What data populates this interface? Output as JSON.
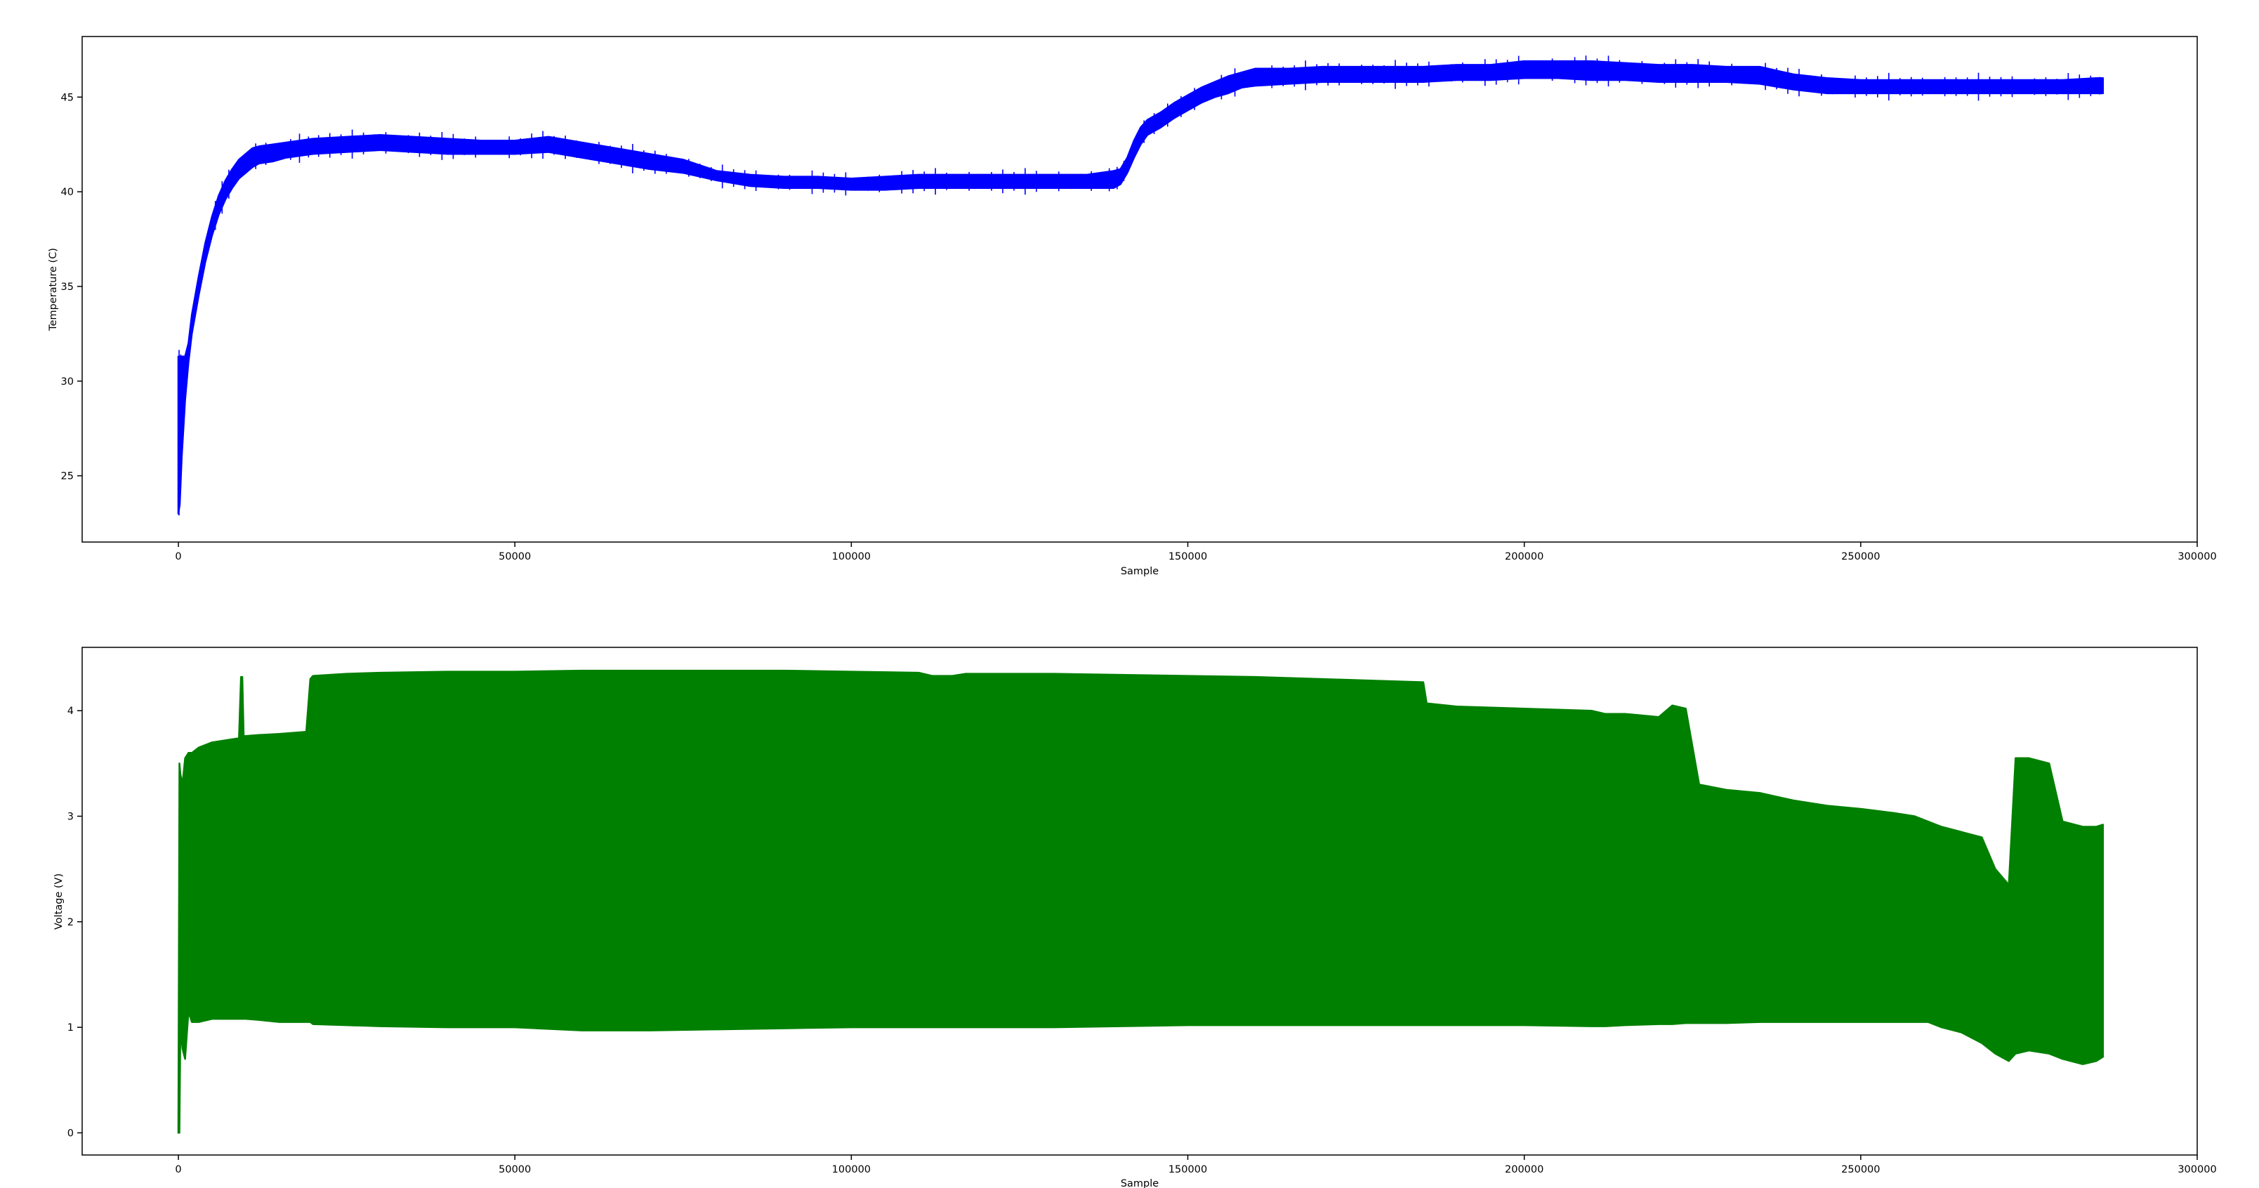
{
  "chart_data": [
    {
      "type": "line",
      "title": "",
      "xlabel": "Sample",
      "ylabel": "Temperature (C)",
      "xlim": [
        -14300,
        300000
      ],
      "ylim": [
        21.5,
        48.2
      ],
      "x_ticks": [
        0,
        50000,
        100000,
        150000,
        200000,
        250000,
        300000
      ],
      "x_tick_labels": [
        "0",
        "50000",
        "100000",
        "150000",
        "200000",
        "250000",
        "300000"
      ],
      "y_ticks": [
        25,
        30,
        35,
        40,
        45
      ],
      "y_tick_labels": [
        "25",
        "30",
        "35",
        "40",
        "45"
      ],
      "grid": false,
      "series": [
        {
          "color": "#0000ff",
          "style": "noisy-band",
          "x": [
            0,
            200,
            500,
            1000,
            1500,
            2000,
            3000,
            4000,
            5000,
            6000,
            7000,
            8000,
            9000,
            10000,
            11000,
            12000,
            14000,
            16000,
            20000,
            25000,
            30000,
            35000,
            40000,
            45000,
            50000,
            55000,
            60000,
            65000,
            70000,
            75000,
            80000,
            85000,
            90000,
            95000,
            100000,
            105000,
            110000,
            115000,
            120000,
            125000,
            130000,
            135000,
            139000,
            140000,
            141000,
            142000,
            143000,
            144000,
            146000,
            148000,
            150000,
            152000,
            154000,
            156000,
            158000,
            160000,
            165000,
            170000,
            175000,
            180000,
            185000,
            190000,
            195000,
            200000,
            205000,
            210000,
            215000,
            220000,
            225000,
            230000,
            235000,
            240000,
            245000,
            250000,
            255000,
            260000,
            265000,
            270000,
            275000,
            280000,
            285000,
            286000
          ],
          "y_low": [
            23.0,
            23.5,
            26.0,
            29.0,
            31.0,
            32.5,
            34.5,
            36.3,
            37.7,
            38.8,
            39.6,
            40.2,
            40.7,
            41.0,
            41.3,
            41.5,
            41.6,
            41.8,
            42.0,
            42.1,
            42.2,
            42.1,
            42.0,
            42.0,
            42.0,
            42.1,
            41.8,
            41.5,
            41.2,
            41.0,
            40.6,
            40.3,
            40.2,
            40.2,
            40.1,
            40.1,
            40.2,
            40.2,
            40.2,
            40.2,
            40.2,
            40.2,
            40.2,
            40.4,
            41.0,
            41.8,
            42.5,
            43.0,
            43.4,
            43.9,
            44.3,
            44.7,
            45.0,
            45.2,
            45.5,
            45.6,
            45.7,
            45.8,
            45.8,
            45.8,
            45.8,
            45.9,
            45.9,
            46.0,
            46.0,
            45.9,
            45.9,
            45.8,
            45.8,
            45.8,
            45.7,
            45.4,
            45.2,
            45.2,
            45.2,
            45.2,
            45.2,
            45.2,
            45.2,
            45.2,
            45.2,
            45.2
          ],
          "y_high": [
            31.3,
            31.3,
            31.3,
            31.3,
            32.0,
            33.5,
            35.5,
            37.3,
            38.7,
            39.8,
            40.6,
            41.2,
            41.7,
            42.0,
            42.3,
            42.4,
            42.5,
            42.6,
            42.8,
            42.9,
            43.0,
            42.9,
            42.8,
            42.7,
            42.7,
            42.9,
            42.6,
            42.3,
            42.0,
            41.7,
            41.1,
            40.9,
            40.8,
            40.8,
            40.7,
            40.8,
            40.9,
            40.9,
            40.9,
            40.9,
            40.9,
            40.9,
            41.1,
            41.2,
            41.8,
            42.7,
            43.4,
            43.8,
            44.2,
            44.7,
            45.1,
            45.5,
            45.8,
            46.1,
            46.3,
            46.5,
            46.5,
            46.6,
            46.6,
            46.6,
            46.6,
            46.7,
            46.7,
            46.9,
            46.9,
            46.9,
            46.8,
            46.7,
            46.7,
            46.6,
            46.6,
            46.2,
            46.0,
            45.9,
            45.9,
            45.9,
            45.9,
            45.9,
            45.9,
            45.9,
            46.0,
            46.0
          ]
        }
      ]
    },
    {
      "type": "area",
      "title": "",
      "xlabel": "Sample",
      "ylabel": "Voltage (V)",
      "xlim": [
        -14300,
        300000
      ],
      "ylim": [
        -0.21,
        4.6
      ],
      "x_ticks": [
        0,
        50000,
        100000,
        150000,
        200000,
        250000,
        300000
      ],
      "x_tick_labels": [
        "0",
        "50000",
        "100000",
        "150000",
        "200000",
        "250000",
        "300000"
      ],
      "y_ticks": [
        0,
        1,
        2,
        3,
        4
      ],
      "y_tick_labels": [
        "0",
        "1",
        "2",
        "3",
        "4"
      ],
      "grid": false,
      "series": [
        {
          "color": "#008000",
          "style": "filled-envelope",
          "x": [
            0,
            150,
            300,
            600,
            1000,
            1500,
            2000,
            3000,
            5000,
            7000,
            9000,
            9300,
            9500,
            9700,
            10000,
            12000,
            15000,
            19000,
            19600,
            20000,
            25000,
            30000,
            40000,
            50000,
            60000,
            70000,
            80000,
            90000,
            100000,
            110000,
            112000,
            115000,
            117000,
            120000,
            130000,
            140000,
            150000,
            160000,
            170000,
            180000,
            185000,
            185500,
            190000,
            200000,
            210000,
            212000,
            215000,
            220000,
            222000,
            224000,
            226000,
            230000,
            235000,
            240000,
            245000,
            250000,
            255000,
            258000,
            260000,
            262000,
            265000,
            268000,
            270000,
            272000,
            273000,
            275000,
            278000,
            280000,
            283000,
            285000,
            286000
          ],
          "y_low": [
            0.0,
            0.0,
            1.0,
            0.8,
            0.7,
            1.15,
            1.05,
            1.05,
            1.08,
            1.08,
            1.08,
            1.08,
            1.08,
            1.08,
            1.08,
            1.07,
            1.05,
            1.05,
            1.05,
            1.03,
            1.02,
            1.01,
            1.0,
            1.0,
            0.97,
            0.97,
            0.98,
            0.99,
            1.0,
            1.0,
            1.0,
            1.0,
            1.0,
            1.0,
            1.0,
            1.01,
            1.02,
            1.02,
            1.02,
            1.02,
            1.02,
            1.02,
            1.02,
            1.02,
            1.01,
            1.01,
            1.02,
            1.03,
            1.03,
            1.04,
            1.04,
            1.04,
            1.05,
            1.05,
            1.05,
            1.05,
            1.05,
            1.05,
            1.05,
            1.0,
            0.95,
            0.85,
            0.75,
            0.68,
            0.75,
            0.78,
            0.75,
            0.7,
            0.65,
            0.68,
            0.72
          ],
          "y_high": [
            0.0,
            3.5,
            3.4,
            3.3,
            3.55,
            3.6,
            3.6,
            3.65,
            3.7,
            3.72,
            3.74,
            4.32,
            4.32,
            3.76,
            3.76,
            3.77,
            3.78,
            3.8,
            4.3,
            4.33,
            4.35,
            4.36,
            4.37,
            4.37,
            4.38,
            4.38,
            4.38,
            4.38,
            4.37,
            4.36,
            4.33,
            4.33,
            4.35,
            4.35,
            4.35,
            4.34,
            4.33,
            4.32,
            4.3,
            4.28,
            4.27,
            4.07,
            4.04,
            4.02,
            4.0,
            3.97,
            3.97,
            3.94,
            4.05,
            4.02,
            3.3,
            3.25,
            3.22,
            3.15,
            3.1,
            3.07,
            3.03,
            3.0,
            2.95,
            2.9,
            2.85,
            2.8,
            2.5,
            2.35,
            3.55,
            3.55,
            3.5,
            2.95,
            2.9,
            2.9,
            2.92
          ]
        }
      ]
    }
  ]
}
